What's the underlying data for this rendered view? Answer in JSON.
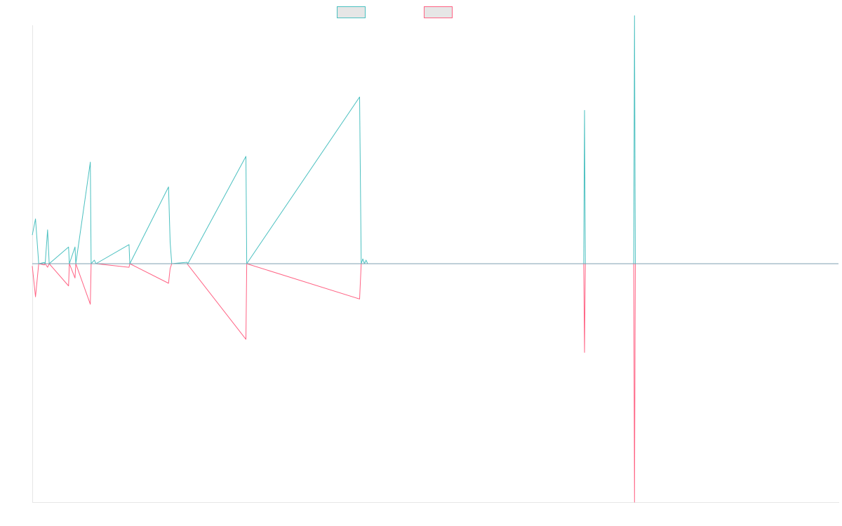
{
  "chart_data": {
    "type": "line",
    "title": "",
    "xlabel": "",
    "ylabel": "",
    "grid": false,
    "legend_position": "top-center",
    "xlim": [
      0,
      1000
    ],
    "ylim": [
      -100,
      100
    ],
    "series": [
      {
        "color": "#4bc0c0",
        "legend_fill": "#e6e6e6",
        "points": [
          [
            0,
            12
          ],
          [
            4,
            18.8
          ],
          [
            8,
            0
          ],
          [
            15,
            0.5
          ],
          [
            16,
            0
          ],
          [
            19,
            14.2
          ],
          [
            21,
            0
          ],
          [
            45,
            7
          ],
          [
            46,
            0
          ],
          [
            53,
            7
          ],
          [
            54,
            0
          ],
          [
            72,
            42.6
          ],
          [
            73,
            0
          ],
          [
            77,
            1.5
          ],
          [
            79,
            0
          ],
          [
            120,
            8
          ],
          [
            121,
            0
          ],
          [
            169,
            32.2
          ],
          [
            171,
            9
          ],
          [
            173,
            0
          ],
          [
            192,
            0.6
          ],
          [
            193,
            0
          ],
          [
            265,
            45
          ],
          [
            266,
            0
          ],
          [
            406,
            69.9
          ],
          [
            408,
            0
          ],
          [
            410,
            2
          ],
          [
            412,
            0
          ],
          [
            414,
            1.5
          ],
          [
            416,
            0
          ],
          [
            684,
            0
          ],
          [
            685,
            64.3
          ],
          [
            686,
            0
          ],
          [
            746,
            0
          ],
          [
            747,
            104
          ],
          [
            748,
            0
          ],
          [
            1000,
            0
          ]
        ]
      },
      {
        "color": "#ff6384",
        "legend_fill": "#e6e6e6",
        "points": [
          [
            0,
            -1
          ],
          [
            4,
            -13.9
          ],
          [
            8,
            0
          ],
          [
            15,
            -0.5
          ],
          [
            16,
            0
          ],
          [
            19,
            -1.5
          ],
          [
            21,
            0
          ],
          [
            45,
            -9.3
          ],
          [
            46,
            0
          ],
          [
            53,
            -6
          ],
          [
            54,
            0
          ],
          [
            72,
            -17
          ],
          [
            73,
            0
          ],
          [
            79,
            0
          ],
          [
            120,
            -1.5
          ],
          [
            121,
            0
          ],
          [
            169,
            -8.2
          ],
          [
            171,
            -2
          ],
          [
            173,
            0
          ],
          [
            192,
            0
          ],
          [
            265,
            -31.7
          ],
          [
            266,
            0
          ],
          [
            406,
            -14.8
          ],
          [
            408,
            0
          ],
          [
            416,
            0
          ],
          [
            684,
            0
          ],
          [
            685,
            -37.2
          ],
          [
            686,
            0
          ],
          [
            746,
            0
          ],
          [
            747,
            -100
          ],
          [
            748,
            0
          ],
          [
            1000,
            0
          ]
        ]
      }
    ]
  }
}
